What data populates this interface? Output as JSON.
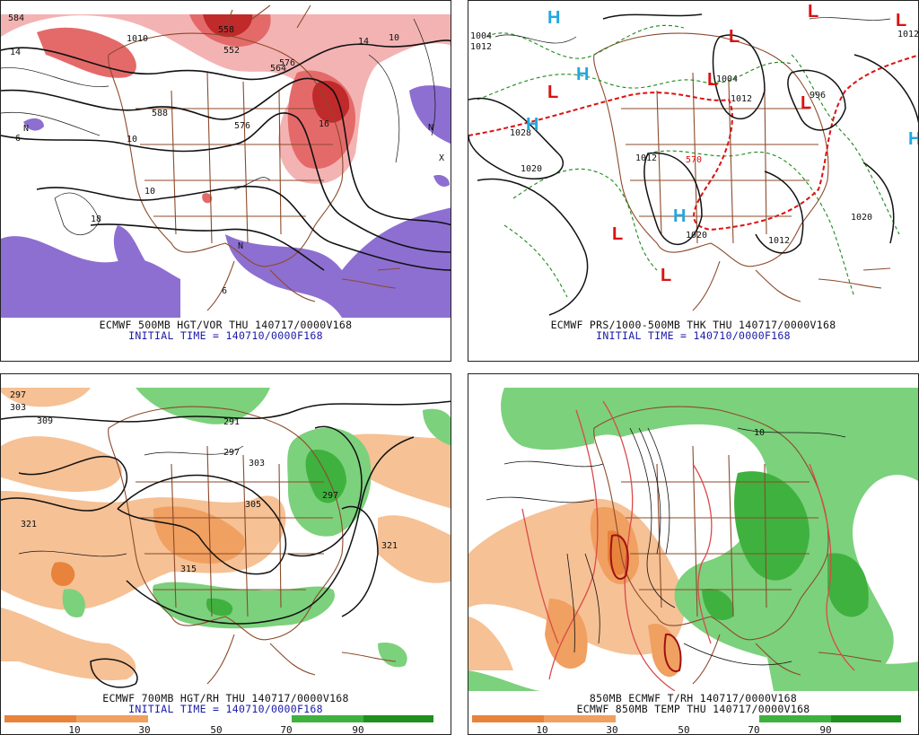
{
  "panels": [
    {
      "id": "p500",
      "caption": "ECMWF 500MB HGT/VOR THU 140717/0000V168",
      "initial": "INITIAL TIME = 140710/0000F168",
      "contour_labels": [
        "584",
        "1010",
        "14",
        "552",
        "558",
        "10",
        "564",
        "576",
        "588",
        "N",
        "X",
        "18",
        "10",
        "6",
        "16",
        "576",
        "14",
        "10",
        "N",
        "6",
        "N"
      ]
    },
    {
      "id": "pprs",
      "caption": "ECMWF PRS/1000-500MB THK THU 140717/0000V168",
      "initial": "INITIAL TIME = 140710/0000F168",
      "isobar_labels": [
        "1004",
        "1012",
        "1028",
        "1020",
        "1012",
        "570",
        "1004",
        "1012",
        "1020",
        "1012",
        "1020",
        "1012",
        "996"
      ],
      "highs_lows": [
        "H",
        "H",
        "H",
        "L",
        "L",
        "L",
        "L",
        "H",
        "L",
        "L",
        "L",
        "L",
        "H"
      ]
    },
    {
      "id": "p700",
      "caption": "ECMWF 700MB HGT/RH THU 140717/0000V168",
      "initial": "INITIAL TIME = 140710/0000F168",
      "contour_labels": [
        "297",
        "303",
        "309",
        "321",
        "297",
        "303",
        "305",
        "297",
        "315",
        "321",
        "291"
      ],
      "colorbar_labels": [
        "10",
        "30",
        "50",
        "70",
        "90"
      ]
    },
    {
      "id": "p850",
      "caption1": "850MB ECMWF T/RH 140717/0000V168",
      "caption2": "ECMWF 850MB TEMP THU 140717/0000V168",
      "contour_labels": [
        "10"
      ],
      "colorbar_labels": [
        "10",
        "30",
        "50",
        "70",
        "90"
      ]
    }
  ],
  "colors": {
    "vort_light": "#f4b3b3",
    "vort_mid": "#e46a6a",
    "vort_dark": "#c02a2a",
    "vort_neg": "#8d6fd1",
    "rh_dry1": "#f6c195",
    "rh_dry2": "#f0a060",
    "rh_dry3": "#e8833b",
    "rh_wet1": "#7cd17c",
    "rh_wet2": "#3fb13f",
    "rh_wet3": "#1f8f1f",
    "map": "#8b4a2b",
    "contour": "#111111",
    "thk_cold": "#1a8a1a",
    "thk_570": "#dd1111",
    "H": "#22a8e0",
    "L": "#dd1111"
  }
}
